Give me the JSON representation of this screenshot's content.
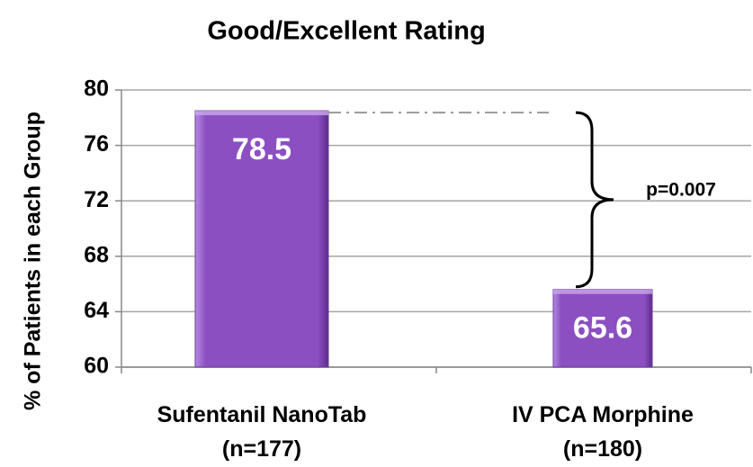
{
  "chart_data": {
    "type": "bar",
    "title": "Good/Excellent Rating",
    "y_label": "% of Patients in each Group",
    "categories": [
      [
        "Sufentanil NanoTab",
        "(n=177)"
      ],
      [
        "IV PCA Morphine",
        "(n=180)"
      ]
    ],
    "values": [
      78.5,
      65.6
    ],
    "color": "#8b4fc2",
    "ylim": [
      60,
      80
    ],
    "yticks": [
      60,
      64,
      68,
      72,
      76,
      80
    ],
    "grid": true,
    "annotation": "p=0.007"
  }
}
